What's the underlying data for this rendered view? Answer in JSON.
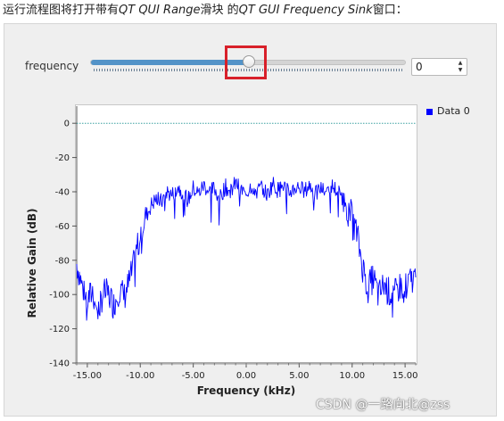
{
  "caption": {
    "part1": "运行流程图将打开带有",
    "part2": "QT QUI Range",
    "part3": "滑块 的",
    "part4": "QT GUI Frequency Sink",
    "part5": "窗口："
  },
  "controls": {
    "frequency_label": "frequency",
    "slider_fraction": 0.5,
    "spinbox_value": "0"
  },
  "chart_data": {
    "type": "line",
    "xlabel": "Frequency (kHz)",
    "ylabel": "Relative Gain (dB)",
    "xlim": [
      -16.0,
      16.0
    ],
    "ylim": [
      -140,
      10
    ],
    "x_ticks": [
      "-15.00",
      "-10.00",
      "-5.00",
      "0.00",
      "5.00",
      "10.00",
      "15.00"
    ],
    "y_ticks": [
      "0",
      "-20",
      "-40",
      "-60",
      "-80",
      "-100",
      "-120",
      "-140"
    ],
    "legend_position": "top-right",
    "reference_line": {
      "y": 0,
      "style": "dotted",
      "color": "#3aa0a0"
    },
    "series": [
      {
        "name": "Data 0",
        "color": "#0000ff",
        "x": [
          -16.0,
          -15.5,
          -15.0,
          -14.5,
          -14.0,
          -13.5,
          -13.0,
          -12.5,
          -12.0,
          -11.5,
          -11.0,
          -10.5,
          -10.0,
          -9.5,
          -9.0,
          -8.5,
          -8.0,
          -7.5,
          -7.0,
          -6.5,
          -6.0,
          -5.5,
          -5.0,
          -4.5,
          -4.0,
          -3.5,
          -3.0,
          -2.5,
          -2.0,
          -1.5,
          -1.0,
          -0.5,
          0.0,
          0.5,
          1.0,
          1.5,
          2.0,
          2.5,
          3.0,
          3.5,
          4.0,
          4.5,
          5.0,
          5.5,
          6.0,
          6.5,
          7.0,
          7.5,
          8.0,
          8.5,
          9.0,
          9.5,
          10.0,
          10.5,
          11.0,
          11.5,
          12.0,
          12.5,
          13.0,
          13.5,
          14.0,
          14.5,
          15.0,
          15.5,
          16.0
        ],
        "y": [
          -82,
          -95,
          -104,
          -98,
          -110,
          -99,
          -100,
          -106,
          -97,
          -101,
          -92,
          -80,
          -62,
          -55,
          -48,
          -44,
          -46,
          -40,
          -42,
          -37,
          -40,
          -45,
          -38,
          -41,
          -36,
          -40,
          -38,
          -44,
          -37,
          -40,
          -35,
          -39,
          -41,
          -36,
          -40,
          -37,
          -42,
          -35,
          -39,
          -36,
          -41,
          -38,
          -37,
          -40,
          -36,
          -42,
          -38,
          -40,
          -36,
          -39,
          -42,
          -48,
          -55,
          -66,
          -84,
          -96,
          -90,
          -101,
          -94,
          -99,
          -100,
          -95,
          -96,
          -92,
          -90
        ]
      }
    ]
  },
  "watermark": "CSDN @一路向北@zss"
}
